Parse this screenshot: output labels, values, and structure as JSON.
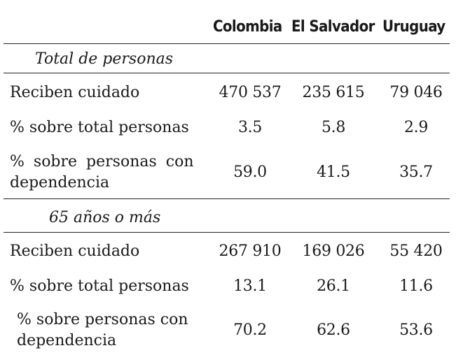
{
  "header": {
    "columns": [
      "Colombia",
      "El Salvador",
      "Uruguay"
    ]
  },
  "sections": [
    {
      "title": "Total de personas",
      "rows": [
        {
          "label_line1": "Reciben cuidado",
          "label_line2": "",
          "values": [
            "470 537",
            "235 615",
            "79 046"
          ]
        },
        {
          "label_line1": "% sobre total personas",
          "label_line2": "",
          "values": [
            "3.5",
            "5.8",
            "2.9"
          ]
        },
        {
          "label_line1": "% sobre personas con",
          "label_line2": "dependencia",
          "values": [
            "59.0",
            "41.5",
            "35.7"
          ]
        }
      ]
    },
    {
      "title": "65 años o más",
      "rows": [
        {
          "label_line1": "Reciben cuidado",
          "label_line2": "",
          "values": [
            "267 910",
            "169 026",
            "55 420"
          ]
        },
        {
          "label_line1": "% sobre total personas",
          "label_line2": "",
          "values": [
            "13.1",
            "26.1",
            "11.6"
          ]
        },
        {
          "label_line1": "% sobre personas con",
          "label_line2": "dependencia",
          "values": [
            "70.2",
            "62.6",
            "53.6"
          ]
        }
      ]
    }
  ]
}
